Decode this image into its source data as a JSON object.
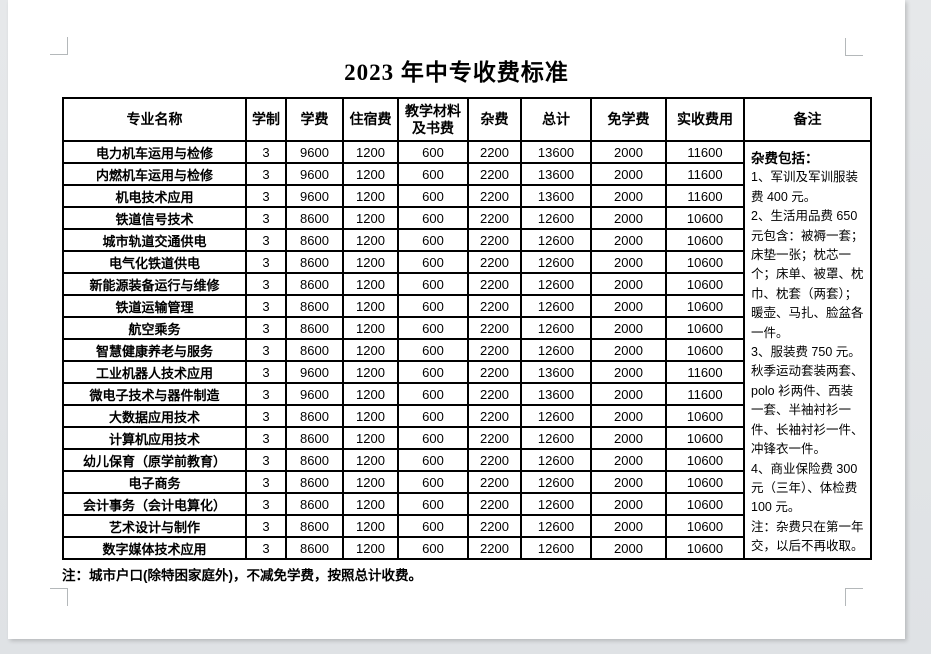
{
  "page": {
    "title": "2023 年中专收费标准",
    "footnote": "注：城市户口(除特困家庭外)，不减免学费，按照总计收费。"
  },
  "table": {
    "columns": [
      "专业名称",
      "学制",
      "学费",
      "住宿费",
      "教学材料及书费",
      "杂费",
      "总计",
      "免学费",
      "实收费用",
      "备注"
    ],
    "rows": [
      [
        "电力机车运用与检修",
        "3",
        "9600",
        "1200",
        "600",
        "2200",
        "13600",
        "2000",
        "11600"
      ],
      [
        "内燃机车运用与检修",
        "3",
        "9600",
        "1200",
        "600",
        "2200",
        "13600",
        "2000",
        "11600"
      ],
      [
        "机电技术应用",
        "3",
        "9600",
        "1200",
        "600",
        "2200",
        "13600",
        "2000",
        "11600"
      ],
      [
        "铁道信号技术",
        "3",
        "8600",
        "1200",
        "600",
        "2200",
        "12600",
        "2000",
        "10600"
      ],
      [
        "城市轨道交通供电",
        "3",
        "8600",
        "1200",
        "600",
        "2200",
        "12600",
        "2000",
        "10600"
      ],
      [
        "电气化铁道供电",
        "3",
        "8600",
        "1200",
        "600",
        "2200",
        "12600",
        "2000",
        "10600"
      ],
      [
        "新能源装备运行与维修",
        "3",
        "8600",
        "1200",
        "600",
        "2200",
        "12600",
        "2000",
        "10600"
      ],
      [
        "铁道运输管理",
        "3",
        "8600",
        "1200",
        "600",
        "2200",
        "12600",
        "2000",
        "10600"
      ],
      [
        "航空乘务",
        "3",
        "8600",
        "1200",
        "600",
        "2200",
        "12600",
        "2000",
        "10600"
      ],
      [
        "智慧健康养老与服务",
        "3",
        "8600",
        "1200",
        "600",
        "2200",
        "12600",
        "2000",
        "10600"
      ],
      [
        "工业机器人技术应用",
        "3",
        "9600",
        "1200",
        "600",
        "2200",
        "13600",
        "2000",
        "11600"
      ],
      [
        "微电子技术与器件制造",
        "3",
        "9600",
        "1200",
        "600",
        "2200",
        "13600",
        "2000",
        "11600"
      ],
      [
        "大数据应用技术",
        "3",
        "8600",
        "1200",
        "600",
        "2200",
        "12600",
        "2000",
        "10600"
      ],
      [
        "计算机应用技术",
        "3",
        "8600",
        "1200",
        "600",
        "2200",
        "12600",
        "2000",
        "10600"
      ],
      [
        "幼儿保育（原学前教育）",
        "3",
        "8600",
        "1200",
        "600",
        "2200",
        "12600",
        "2000",
        "10600"
      ],
      [
        "电子商务",
        "3",
        "8600",
        "1200",
        "600",
        "2200",
        "12600",
        "2000",
        "10600"
      ],
      [
        "会计事务（会计电算化）",
        "3",
        "8600",
        "1200",
        "600",
        "2200",
        "12600",
        "2000",
        "10600"
      ],
      [
        "艺术设计与制作",
        "3",
        "8600",
        "1200",
        "600",
        "2200",
        "12600",
        "2000",
        "10600"
      ],
      [
        "数字媒体技术应用",
        "3",
        "8600",
        "1200",
        "600",
        "2200",
        "12600",
        "2000",
        "10600"
      ]
    ],
    "remarks": {
      "heading": "杂费包括：",
      "lines": [
        "1、军训及军训服装费 400 元。",
        "2、生活用品费 650 元包含：被褥一套；床垫一张；枕芯一个；床单、被罩、枕巾、枕套（两套）；暖壶、马扎、脸盆各一件。",
        "3、服装费 750 元。秋季运动套装两套、polo 衫两件、西装一套、半袖衬衫一件、长袖衬衫一件、冲锋衣一件。",
        "4、商业保险费 300 元（三年）、体检费 100 元。",
        "注：杂费只在第一年交，以后不再收取。"
      ]
    }
  },
  "colors": {
    "page_background": "#ffffff",
    "canvas_background": "#e2e4e7",
    "table_border": "#000000",
    "text": "#000000",
    "crop_mark": "#b4b8ba"
  }
}
